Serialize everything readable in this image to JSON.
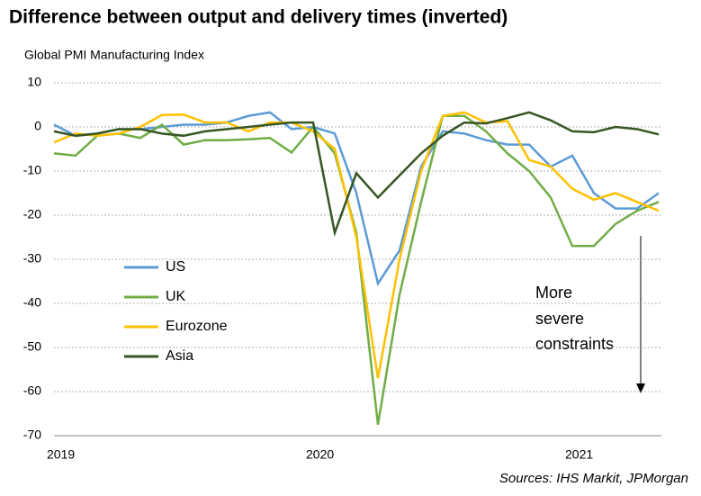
{
  "chart_data": {
    "type": "line",
    "title": "Difference between output and delivery times (inverted)",
    "subtitle": "Global PMI Manufacturing Index",
    "source": "Sources: IHS Markit, JPMorgan",
    "annotation": [
      "More",
      "severe",
      "constraints"
    ],
    "categories": [
      "2019",
      null,
      null,
      null,
      null,
      null,
      null,
      null,
      null,
      null,
      null,
      null,
      "2020",
      null,
      null,
      null,
      null,
      null,
      null,
      null,
      null,
      null,
      null,
      null,
      "2021",
      null,
      null,
      null,
      null
    ],
    "series": [
      {
        "name": "US",
        "color": "#5b9bd5",
        "values": [
          0.5,
          -2,
          -1.5,
          -0.5,
          -0.5,
          0,
          0.5,
          0.5,
          1,
          2.5,
          3.3,
          -0.5,
          0,
          -1.5,
          -15,
          -35.5,
          -28,
          -9,
          -1,
          -1.5,
          -3,
          -4,
          -4,
          -9,
          -6.5,
          -15,
          -18.5,
          -18.5,
          -15
        ]
      },
      {
        "name": "UK",
        "color": "#70ad47",
        "values": [
          -6,
          -6.5,
          -2,
          -1.5,
          -2.5,
          0.5,
          -4,
          -3,
          -3,
          -2.8,
          -2.5,
          -5.8,
          0,
          -6,
          -24,
          -67.5,
          -38,
          -17,
          2.5,
          2.5,
          -1,
          -6,
          -10,
          -16,
          -27,
          -27,
          -22,
          -19,
          -17
        ]
      },
      {
        "name": "Eurozone",
        "color": "#ffc000",
        "values": [
          -3.5,
          -1.5,
          -2,
          -1.5,
          0,
          2.7,
          2.8,
          1,
          1,
          -1,
          1,
          1,
          -1,
          -5,
          -25,
          -57,
          -30,
          -10,
          2.5,
          3.3,
          1,
          1.3,
          -7.5,
          -9,
          -14,
          -16.5,
          -15,
          -17,
          -19
        ]
      },
      {
        "name": "Asia",
        "color": "#375623",
        "values": [
          -1,
          -2,
          -1.5,
          -0.5,
          -0.5,
          -1.5,
          -2,
          -1,
          -0.5,
          0,
          0.5,
          1,
          1,
          -24,
          -10.5,
          -16,
          -11,
          -6,
          -2,
          1,
          0.8,
          2,
          3.3,
          1.5,
          -1,
          -1.2,
          0,
          -0.5,
          -1.7
        ]
      }
    ],
    "ylim": [
      -70,
      10
    ],
    "yticks": [
      10,
      0,
      -10,
      -20,
      -30,
      -40,
      -50,
      -60,
      -70
    ],
    "grid": true
  }
}
